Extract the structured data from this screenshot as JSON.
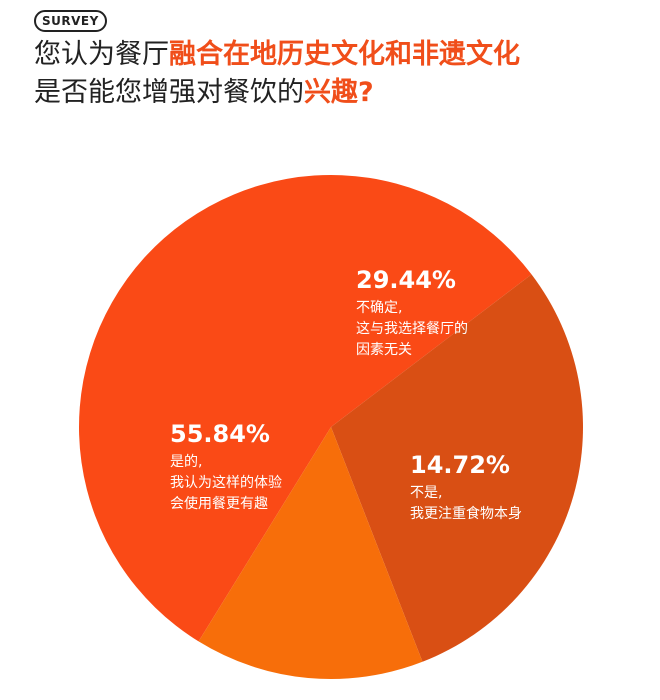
{
  "badge": "SURVEY",
  "question": {
    "line1_plain": "您认为餐厅",
    "line1_highlight": "融合在地历史文化和非遗文化",
    "line2_plain": "是否能您增强对餐饮的",
    "line2_highlight": "兴趣?"
  },
  "colors": {
    "accent": "#f04e1a",
    "slice_yes": "#fa4a16",
    "slice_unsure": "#d94f14",
    "slice_no": "#f76e0a"
  },
  "chart_data": {
    "type": "pie",
    "slices": [
      {
        "label": "是的,\n我认为这样的体验\n会使用餐更有趣",
        "value": 55.84,
        "value_text": "55.84%",
        "color": "#fa4a16"
      },
      {
        "label": "不确定,\n这与我选择餐厅的\n因素无关",
        "value": 29.44,
        "value_text": "29.44%",
        "color": "#d94f14"
      },
      {
        "label": "不是,\n我更注重食物本身",
        "value": 14.72,
        "value_text": "14.72%",
        "color": "#f76e0a"
      }
    ]
  }
}
